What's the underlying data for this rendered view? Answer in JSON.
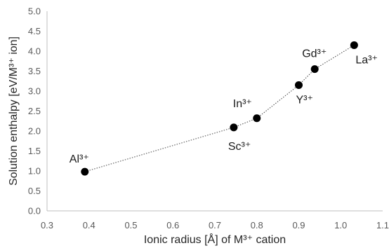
{
  "chart_data": {
    "type": "scatter",
    "xlabel": "Ionic radius [Å] of M³⁺ cation",
    "ylabel": "Solution enthalpy [eV/M³⁺ ion]",
    "xlim": [
      0.3,
      1.1
    ],
    "ylim": [
      0.0,
      5.0
    ],
    "xticks": [
      "0.3",
      "0.4",
      "0.5",
      "0.6",
      "0.7",
      "0.8",
      "0.9",
      "1.0",
      "1.1"
    ],
    "yticks": [
      "0.0",
      "0.5",
      "1.0",
      "1.5",
      "2.0",
      "2.5",
      "3.0",
      "3.5",
      "4.0",
      "4.5",
      "5.0"
    ],
    "grid": false,
    "line_style": "dotted",
    "points": [
      {
        "label": "Al³⁺",
        "x": 0.39,
        "y": 0.98
      },
      {
        "label": "Sc³⁺",
        "x": 0.745,
        "y": 2.09
      },
      {
        "label": "In³⁺",
        "x": 0.8,
        "y": 2.32
      },
      {
        "label": "Y³⁺",
        "x": 0.9,
        "y": 3.15
      },
      {
        "label": "Gd³⁺",
        "x": 0.938,
        "y": 3.55
      },
      {
        "label": "La³⁺",
        "x": 1.032,
        "y": 4.15
      }
    ]
  }
}
